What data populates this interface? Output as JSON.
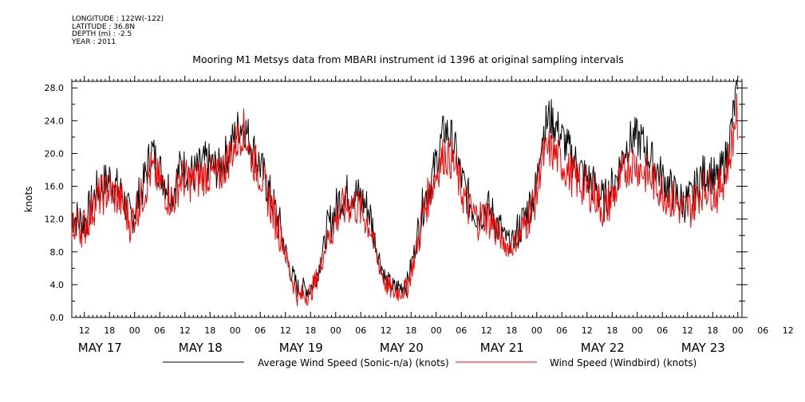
{
  "header": {
    "lines": [
      "LONGITUDE : 122W(-122)",
      "LATITUDE : 36.8N",
      "DEPTH (m) : -2.5",
      "YEAR : 2011"
    ],
    "title": "Mooring M1 Metsys data from MBARI instrument id 1396 at original sampling intervals"
  },
  "chart_data": {
    "type": "line",
    "title": "Mooring M1 Metsys data from MBARI instrument id 1396 at original sampling intervals",
    "xlabel": "",
    "ylabel": "knots",
    "ylim": [
      0,
      28.8
    ],
    "y_ticks": [
      "0.0",
      "4.0",
      "8.0",
      "12.0",
      "16.0",
      "20.0",
      "24.0",
      "28.0"
    ],
    "x_range_hours": [
      "2011-05-17 09:00",
      "2011-05-24 01:00"
    ],
    "x_tick_labels": [
      "12",
      "18",
      "00",
      "06",
      "12",
      "18",
      "00",
      "06",
      "12",
      "18",
      "00",
      "06",
      "12",
      "18",
      "00",
      "06",
      "12",
      "18",
      "00",
      "06",
      "12",
      "18",
      "00",
      "06",
      "12",
      "18",
      "00",
      "06",
      "12",
      "18",
      "00"
    ],
    "day_labels": [
      "MAY 17",
      "MAY 18",
      "MAY 19",
      "MAY 20",
      "MAY 21",
      "MAY 22",
      "MAY 23"
    ],
    "legend_position": "bottom",
    "series": [
      {
        "name": "Average Wind Speed (Sonic-n/a) (knots)",
        "color": "#000000",
        "points": [
          [
            "2011-05-17 09:00",
            12.5
          ],
          [
            "2011-05-17 12:00",
            11.5
          ],
          [
            "2011-05-17 15:00",
            15.5
          ],
          [
            "2011-05-17 18:00",
            17.0
          ],
          [
            "2011-05-17 21:00",
            15.0
          ],
          [
            "2011-05-17 23:00",
            12.0
          ],
          [
            "2011-05-18 02:00",
            16.0
          ],
          [
            "2011-05-18 04:00",
            20.5
          ],
          [
            "2011-05-18 06:00",
            18.0
          ],
          [
            "2011-05-18 09:00",
            15.0
          ],
          [
            "2011-05-18 11:00",
            18.5
          ],
          [
            "2011-05-18 14:00",
            17.5
          ],
          [
            "2011-05-18 17:00",
            19.0
          ],
          [
            "2011-05-18 20:00",
            18.0
          ],
          [
            "2011-05-18 23:00",
            21.0
          ],
          [
            "2011-05-19 01:00",
            23.5
          ],
          [
            "2011-05-19 02:00",
            23.5
          ],
          [
            "2011-05-19 04:00",
            21.0
          ],
          [
            "2011-05-19 06:00",
            18.5
          ],
          [
            "2011-05-19 08:00",
            15.5
          ],
          [
            "2011-05-19 11:00",
            10.5
          ],
          [
            "2011-05-19 13:00",
            6.0
          ],
          [
            "2011-05-19 15:00",
            3.5
          ],
          [
            "2011-05-19 18:00",
            3.5
          ],
          [
            "2011-05-19 20:00",
            6.0
          ],
          [
            "2011-05-19 22:00",
            10.5
          ],
          [
            "2011-05-20 01:00",
            14.5
          ],
          [
            "2011-05-20 04:00",
            15.5
          ],
          [
            "2011-05-20 06:00",
            14.5
          ],
          [
            "2011-05-20 08:00",
            13.0
          ],
          [
            "2011-05-20 10:00",
            8.0
          ],
          [
            "2011-05-20 12:00",
            4.5
          ],
          [
            "2011-05-20 14:00",
            3.5
          ],
          [
            "2011-05-20 17:00",
            4.0
          ],
          [
            "2011-05-20 19:00",
            8.5
          ],
          [
            "2011-05-20 21:00",
            14.0
          ],
          [
            "2011-05-20 23:00",
            17.0
          ],
          [
            "2011-05-21 01:00",
            21.0
          ],
          [
            "2011-05-21 02:00",
            23.0
          ],
          [
            "2011-05-21 04:00",
            21.5
          ],
          [
            "2011-05-21 06:00",
            17.0
          ],
          [
            "2011-05-21 08:00",
            14.0
          ],
          [
            "2011-05-21 10:00",
            12.5
          ],
          [
            "2011-05-21 12:00",
            13.5
          ],
          [
            "2011-05-21 14:00",
            12.0
          ],
          [
            "2011-05-21 16:00",
            10.0
          ],
          [
            "2011-05-21 18:00",
            9.0
          ],
          [
            "2011-05-21 21:00",
            12.0
          ],
          [
            "2011-05-22 00:00",
            16.0
          ],
          [
            "2011-05-22 01:00",
            22.0
          ],
          [
            "2011-05-22 03:00",
            24.5
          ],
          [
            "2011-05-22 05:00",
            23.0
          ],
          [
            "2011-05-22 08:00",
            20.0
          ],
          [
            "2011-05-22 11:00",
            17.5
          ],
          [
            "2011-05-22 14:00",
            16.0
          ],
          [
            "2011-05-22 16:00",
            14.0
          ],
          [
            "2011-05-22 19:00",
            17.0
          ],
          [
            "2011-05-22 21:00",
            20.5
          ],
          [
            "2011-05-22 23:00",
            22.0
          ],
          [
            "2011-05-23 01:00",
            21.5
          ],
          [
            "2011-05-23 03:00",
            19.5
          ],
          [
            "2011-05-23 06:00",
            17.0
          ],
          [
            "2011-05-23 09:00",
            15.0
          ],
          [
            "2011-05-23 11:00",
            14.0
          ],
          [
            "2011-05-23 13:00",
            14.5
          ],
          [
            "2011-05-23 15:00",
            17.0
          ],
          [
            "2011-05-23 17:00",
            18.0
          ],
          [
            "2011-05-23 19:00",
            16.5
          ],
          [
            "2011-05-23 21:00",
            19.0
          ],
          [
            "2011-05-23 22:00",
            21.5
          ],
          [
            "2011-05-23 23:00",
            25.0
          ],
          [
            "2011-05-23 23:40",
            27.5
          ],
          [
            "2011-05-24 00:00",
            25.0
          ]
        ]
      },
      {
        "name": "Wind Speed (Windbird) (knots)",
        "color": "#ff0000",
        "points": [
          [
            "2011-05-17 09:00",
            11.5
          ],
          [
            "2011-05-17 12:00",
            11.0
          ],
          [
            "2011-05-17 15:00",
            14.5
          ],
          [
            "2011-05-17 18:00",
            15.5
          ],
          [
            "2011-05-17 21:00",
            14.0
          ],
          [
            "2011-05-17 23:00",
            11.5
          ],
          [
            "2011-05-18 02:00",
            15.0
          ],
          [
            "2011-05-18 04:00",
            18.0
          ],
          [
            "2011-05-18 06:00",
            16.5
          ],
          [
            "2011-05-18 09:00",
            14.0
          ],
          [
            "2011-05-18 11:00",
            17.0
          ],
          [
            "2011-05-18 14:00",
            16.5
          ],
          [
            "2011-05-18 17:00",
            17.5
          ],
          [
            "2011-05-18 20:00",
            17.0
          ],
          [
            "2011-05-18 23:00",
            20.0
          ],
          [
            "2011-05-19 01:00",
            22.0
          ],
          [
            "2011-05-19 02:00",
            23.0
          ],
          [
            "2011-05-19 04:00",
            19.5
          ],
          [
            "2011-05-19 06:00",
            17.5
          ],
          [
            "2011-05-19 08:00",
            14.5
          ],
          [
            "2011-05-19 11:00",
            10.0
          ],
          [
            "2011-05-19 13:00",
            5.5
          ],
          [
            "2011-05-19 15:00",
            2.5
          ],
          [
            "2011-05-19 18:00",
            3.0
          ],
          [
            "2011-05-19 20:00",
            5.5
          ],
          [
            "2011-05-19 22:00",
            9.5
          ],
          [
            "2011-05-20 01:00",
            13.0
          ],
          [
            "2011-05-20 04:00",
            14.0
          ],
          [
            "2011-05-20 06:00",
            13.0
          ],
          [
            "2011-05-20 08:00",
            11.5
          ],
          [
            "2011-05-20 10:00",
            7.0
          ],
          [
            "2011-05-20 12:00",
            4.0
          ],
          [
            "2011-05-20 14:00",
            3.0
          ],
          [
            "2011-05-20 17:00",
            3.5
          ],
          [
            "2011-05-20 19:00",
            7.5
          ],
          [
            "2011-05-20 21:00",
            13.0
          ],
          [
            "2011-05-20 23:00",
            16.0
          ],
          [
            "2011-05-21 01:00",
            19.0
          ],
          [
            "2011-05-21 02:00",
            20.0
          ],
          [
            "2011-05-21 04:00",
            19.0
          ],
          [
            "2011-05-21 06:00",
            15.5
          ],
          [
            "2011-05-21 08:00",
            13.0
          ],
          [
            "2011-05-21 10:00",
            12.0
          ],
          [
            "2011-05-21 12:00",
            12.5
          ],
          [
            "2011-05-21 14:00",
            11.0
          ],
          [
            "2011-05-21 16:00",
            9.0
          ],
          [
            "2011-05-21 18:00",
            8.5
          ],
          [
            "2011-05-21 21:00",
            11.0
          ],
          [
            "2011-05-22 00:00",
            15.0
          ],
          [
            "2011-05-22 01:00",
            19.0
          ],
          [
            "2011-05-22 03:00",
            20.5
          ],
          [
            "2011-05-22 05:00",
            19.5
          ],
          [
            "2011-05-22 08:00",
            17.5
          ],
          [
            "2011-05-22 11:00",
            16.0
          ],
          [
            "2011-05-22 14:00",
            15.0
          ],
          [
            "2011-05-22 16:00",
            13.0
          ],
          [
            "2011-05-22 19:00",
            15.5
          ],
          [
            "2011-05-22 21:00",
            18.0
          ],
          [
            "2011-05-22 23:00",
            19.0
          ],
          [
            "2011-05-23 01:00",
            18.0
          ],
          [
            "2011-05-23 03:00",
            17.0
          ],
          [
            "2011-05-23 06:00",
            15.5
          ],
          [
            "2011-05-23 09:00",
            14.0
          ],
          [
            "2011-05-23 11:00",
            13.0
          ],
          [
            "2011-05-23 13:00",
            13.5
          ],
          [
            "2011-05-23 15:00",
            15.5
          ],
          [
            "2011-05-23 17:00",
            16.0
          ],
          [
            "2011-05-23 19:00",
            15.0
          ],
          [
            "2011-05-23 21:00",
            17.5
          ],
          [
            "2011-05-23 22:00",
            19.5
          ],
          [
            "2011-05-23 23:00",
            22.5
          ],
          [
            "2011-05-23 23:40",
            25.5
          ],
          [
            "2011-05-24 00:00",
            23.0
          ]
        ]
      }
    ]
  }
}
